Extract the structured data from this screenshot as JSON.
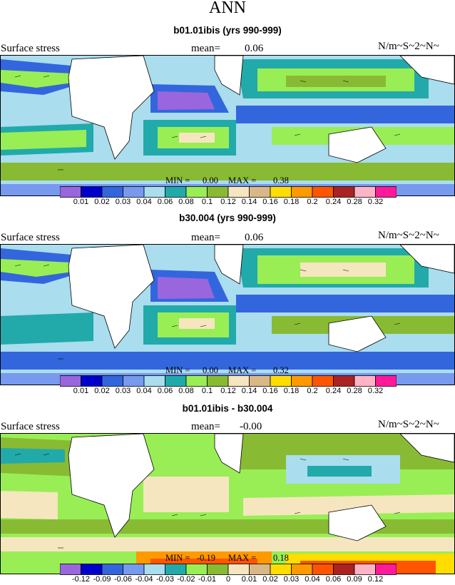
{
  "figure": {
    "season": "ANN"
  },
  "panels": [
    {
      "title": "b01.01ibis (yrs 990-999)",
      "left_label": "Surface stress",
      "mean_label": "mean=",
      "mean_value": "0.06",
      "units": "N/m~S~2~N~",
      "min_label": "MIN =",
      "min_value": "0.00",
      "max_label": "MAX =",
      "max_value": "0.38",
      "colorbar": {
        "colors": [
          "#9966dd",
          "#0000cc",
          "#3366dd",
          "#7799ee",
          "#aaddee",
          "#22aaaa",
          "#99ee55",
          "#88bb33",
          "#f5e6c0",
          "#d9b886",
          "#ffdd00",
          "#ff9900",
          "#ff5500",
          "#aa2222",
          "#ffb3c6",
          "#ff1a99"
        ],
        "ticks": [
          "0.01",
          "0.02",
          "0.03",
          "0.04",
          "0.06",
          "0.08",
          "0.1",
          "0.12",
          "0.14",
          "0.16",
          "0.18",
          "0.2",
          "0.24",
          "0.28",
          "0.32"
        ]
      }
    },
    {
      "title": "b30.004 (yrs 990-999)",
      "left_label": "Surface stress",
      "mean_label": "mean=",
      "mean_value": "0.06",
      "units": "N/m~S~2~N~",
      "min_label": "MIN =",
      "min_value": "0.00",
      "max_label": "MAX =",
      "max_value": "0.32",
      "colorbar": {
        "colors": [
          "#9966dd",
          "#0000cc",
          "#3366dd",
          "#7799ee",
          "#aaddee",
          "#22aaaa",
          "#99ee55",
          "#88bb33",
          "#f5e6c0",
          "#d9b886",
          "#ffdd00",
          "#ff9900",
          "#ff5500",
          "#aa2222",
          "#ffb3c6",
          "#ff1a99"
        ],
        "ticks": [
          "0.01",
          "0.02",
          "0.03",
          "0.04",
          "0.06",
          "0.08",
          "0.1",
          "0.12",
          "0.14",
          "0.16",
          "0.18",
          "0.2",
          "0.24",
          "0.28",
          "0.32"
        ]
      }
    },
    {
      "title": "b01.01ibis - b30.004",
      "left_label": "Surface stress",
      "mean_label": "mean=",
      "mean_value": "-0.00",
      "units": "N/m~S~2~N~",
      "min_label": "MIN =",
      "min_value": "-0.19",
      "max_label": "MAX =",
      "max_value": "0.18",
      "colorbar": {
        "colors": [
          "#9966dd",
          "#0000cc",
          "#3366dd",
          "#7799ee",
          "#aaddee",
          "#22aaaa",
          "#99ee55",
          "#88bb33",
          "#f5e6c0",
          "#d9b886",
          "#ffdd00",
          "#ff9900",
          "#ff5500",
          "#aa2222",
          "#ffb3c6",
          "#ff1a99"
        ],
        "ticks": [
          "-0.12",
          "-0.09",
          "-0.06",
          "-0.04",
          "-0.03",
          "-0.02",
          "-0.01",
          "0",
          "0.01",
          "0.02",
          "0.03",
          "0.04",
          "0.06",
          "0.09",
          "0.12"
        ]
      }
    }
  ],
  "chart_data": [
    {
      "type": "heatmap",
      "title": "b01.01ibis (yrs 990-999)",
      "variable": "Surface stress",
      "units": "N/m~S~2~N~",
      "mean": 0.06,
      "min": 0.0,
      "max": 0.38,
      "contour_levels": [
        0.01,
        0.02,
        0.03,
        0.04,
        0.06,
        0.08,
        0.1,
        0.12,
        0.14,
        0.16,
        0.18,
        0.2,
        0.24,
        0.28,
        0.32
      ]
    },
    {
      "type": "heatmap",
      "title": "b30.004 (yrs 990-999)",
      "variable": "Surface stress",
      "units": "N/m~S~2~N~",
      "mean": 0.06,
      "min": 0.0,
      "max": 0.32,
      "contour_levels": [
        0.01,
        0.02,
        0.03,
        0.04,
        0.06,
        0.08,
        0.1,
        0.12,
        0.14,
        0.16,
        0.18,
        0.2,
        0.24,
        0.28,
        0.32
      ]
    },
    {
      "type": "heatmap",
      "title": "b01.01ibis - b30.004",
      "variable": "Surface stress",
      "units": "N/m~S~2~N~",
      "mean": -0.0,
      "min": -0.19,
      "max": 0.18,
      "contour_levels": [
        -0.12,
        -0.09,
        -0.06,
        -0.04,
        -0.03,
        -0.02,
        -0.01,
        0,
        0.01,
        0.02,
        0.03,
        0.04,
        0.06,
        0.09,
        0.12
      ]
    }
  ]
}
